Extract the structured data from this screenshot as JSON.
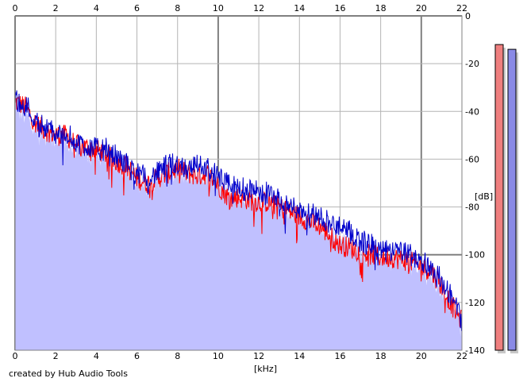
{
  "credit": "created by Hub Audio Tools",
  "chart_data": {
    "type": "line",
    "xlabel": "[kHz]",
    "ylabel": "[dB]",
    "xlim": [
      0,
      22
    ],
    "ylim": [
      -140,
      0
    ],
    "x_ticks": [
      0,
      2,
      4,
      6,
      8,
      10,
      12,
      14,
      16,
      18,
      20,
      22
    ],
    "y_ticks": [
      0,
      -20,
      -40,
      -60,
      -80,
      -100,
      -120,
      -140
    ],
    "grid": true,
    "x_ticks_top_and_bottom": true,
    "colors": {
      "fill": "#c0c0ff",
      "channel_1": "#ff0000",
      "channel_2": "#0000cc",
      "grid": "#b4b4b4",
      "grid_major": "#808080",
      "meter_1": "#ef7f7f",
      "meter_2": "#8a8ae6"
    },
    "series": [
      {
        "color": "#ff0000",
        "x": [
          0,
          0.5,
          1,
          1.5,
          2,
          2.5,
          3,
          3.5,
          4,
          4.5,
          5,
          5.5,
          6,
          6.5,
          7,
          7.5,
          8,
          8.5,
          9,
          9.5,
          10,
          10.5,
          11,
          11.5,
          12,
          12.5,
          13,
          13.5,
          14,
          14.5,
          15,
          15.5,
          16,
          16.5,
          17,
          17.5,
          18,
          18.5,
          19,
          19.5,
          20,
          20.5,
          21,
          21.5,
          22
        ],
        "y": [
          -36,
          -38,
          -45,
          -48,
          -50,
          -50,
          -54,
          -55,
          -56,
          -58,
          -61,
          -63,
          -68,
          -70,
          -68,
          -66,
          -64,
          -66,
          -67,
          -66,
          -71,
          -76,
          -76,
          -77,
          -78,
          -78,
          -80,
          -82,
          -84,
          -86,
          -88,
          -92,
          -96,
          -97,
          -99,
          -100,
          -101,
          -101,
          -102,
          -103,
          -105,
          -107,
          -113,
          -121,
          -128
        ]
      },
      {
        "color": "#0000cc",
        "x": [
          0,
          0.5,
          1,
          1.5,
          2,
          2.5,
          3,
          3.5,
          4,
          4.5,
          5,
          5.5,
          6,
          6.5,
          7,
          7.5,
          8,
          8.5,
          9,
          9.5,
          10,
          10.5,
          11,
          11.5,
          12,
          12.5,
          13,
          13.5,
          14,
          14.5,
          15,
          15.5,
          16,
          16.5,
          17,
          17.5,
          18,
          18.5,
          19,
          19.5,
          20,
          20.5,
          21,
          21.5,
          22
        ],
        "y": [
          -35,
          -37,
          -44,
          -46,
          -50,
          -49,
          -53,
          -54,
          -56,
          -56,
          -59,
          -62,
          -66,
          -68,
          -66,
          -63,
          -62,
          -64,
          -62,
          -64,
          -68,
          -71,
          -72,
          -73,
          -74,
          -74,
          -77,
          -80,
          -81,
          -82,
          -84,
          -87,
          -89,
          -91,
          -94,
          -96,
          -98,
          -99,
          -98,
          -100,
          -103,
          -105,
          -111,
          -118,
          -127
        ]
      }
    ],
    "meters": [
      -12,
      -14
    ]
  }
}
